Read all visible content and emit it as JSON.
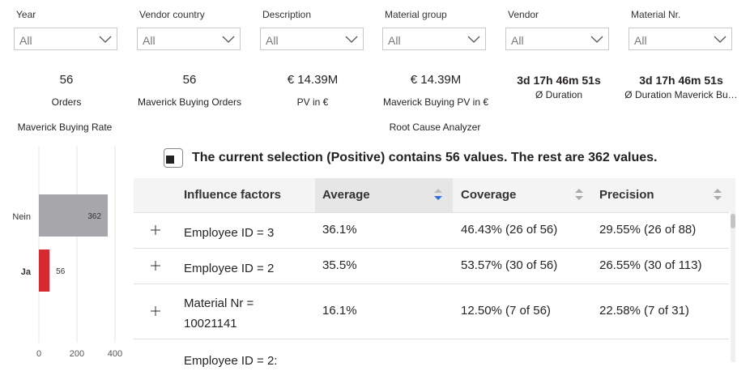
{
  "filters": [
    {
      "label": "Year",
      "value": "All"
    },
    {
      "label": "Vendor country",
      "value": "All"
    },
    {
      "label": "Description",
      "value": "All"
    },
    {
      "label": "Material group",
      "value": "All"
    },
    {
      "label": "Vendor",
      "value": "All"
    },
    {
      "label": "Material Nr.",
      "value": "All"
    }
  ],
  "kpis": [
    {
      "value": "56",
      "label": "Orders"
    },
    {
      "value": "56",
      "label": "Maverick Buying Orders"
    },
    {
      "value": "€ 14.39M",
      "label": "PV in €"
    },
    {
      "value": "€ 14.39M",
      "label": "Maverick Buying PV in €"
    },
    {
      "value": "3d 17h 46m 51s",
      "label": "Ø Duration"
    },
    {
      "value": "3d 17h 46m 51s",
      "label": "Ø Duration Maverick Bu…"
    }
  ],
  "chart_data": {
    "type": "bar",
    "orientation": "horizontal",
    "title": "Maverick Buying Rate",
    "categories": [
      "Nein",
      "Ja"
    ],
    "values": [
      362,
      56
    ],
    "colors": [
      "#a7a7ab",
      "#d62a30"
    ],
    "xlim": [
      0,
      430
    ],
    "xticks": [
      0,
      200,
      400
    ],
    "grid": true
  },
  "analyzer": {
    "title": "Root Cause Analyzer",
    "message": "The current selection (Positive) contains 56 values. The rest are 362 values.",
    "columns": [
      "Influence factors",
      "Average",
      "Coverage",
      "Precision"
    ],
    "rows": [
      [
        "Employee ID = 3",
        "36.1%",
        "46.43% (26 of 56)",
        "29.55% (26 of 88)"
      ],
      [
        "Employee ID = 2",
        "35.5%",
        "53.57% (30 of 56)",
        "26.55% (30 of 113)"
      ],
      [
        "Material Nr = 10021141",
        "16.1%",
        "12.50% (7 of 56)",
        "22.58% (7 of 31)"
      ],
      [
        "Employee ID = 2:"
      ]
    ]
  }
}
